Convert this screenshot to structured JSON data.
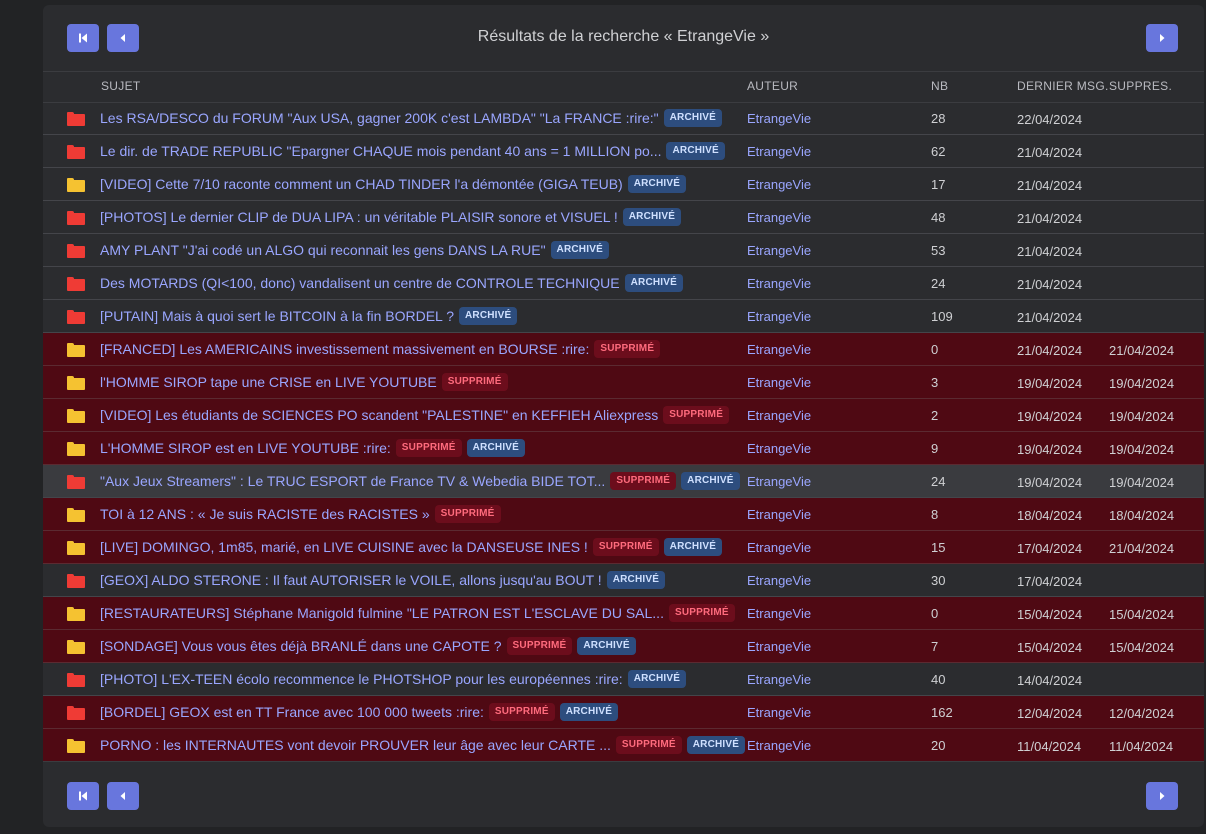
{
  "header": {
    "title": "Résultats de la recherche « EtrangeVie »",
    "first_icon": "first-page-icon",
    "prev_icon": "prev-page-icon",
    "next_icon": "next-page-icon"
  },
  "columns": {
    "subject": "SUJET",
    "author": "AUTEUR",
    "nb": "NB",
    "last_msg": "DERNIER MSG.",
    "deleted_on": "SUPPRES."
  },
  "badges": {
    "archived": "ARCHIVÉ",
    "deleted": "SUPPRIMÉ"
  },
  "colors": {
    "accent": "#6876dd",
    "link": "#9aa6ff",
    "deleted_row": "#4f0913",
    "folder_red": "#ef3b35",
    "folder_yellow": "#f5c231"
  },
  "rows": [
    {
      "folder": "red",
      "subject": "Les RSA/DESCO du FORUM \"Aux USA, gagner 200K c'est LAMBDA\" \"La FRANCE :rire:\"",
      "deleted": false,
      "archived": true,
      "author": "EtrangeVie",
      "nb": "28",
      "last": "22/04/2024",
      "supp": ""
    },
    {
      "folder": "red",
      "subject": "Le dir. de TRADE REPUBLIC \"Epargner CHAQUE mois pendant 40 ans = 1 MILLION po...",
      "deleted": false,
      "archived": true,
      "author": "EtrangeVie",
      "nb": "62",
      "last": "21/04/2024",
      "supp": ""
    },
    {
      "folder": "yellow",
      "subject": "[VIDEO] Cette 7/10 raconte comment un CHAD TINDER l'a démontée (GIGA TEUB)",
      "deleted": false,
      "archived": true,
      "author": "EtrangeVie",
      "nb": "17",
      "last": "21/04/2024",
      "supp": ""
    },
    {
      "folder": "red",
      "subject": "[PHOTOS] Le dernier CLIP de DUA LIPA : un véritable PLAISIR sonore et VISUEL !",
      "deleted": false,
      "archived": true,
      "author": "EtrangeVie",
      "nb": "48",
      "last": "21/04/2024",
      "supp": ""
    },
    {
      "folder": "red",
      "subject": "AMY PLANT \"J'ai codé un ALGO qui reconnait les gens DANS LA RUE\"",
      "deleted": false,
      "archived": true,
      "author": "EtrangeVie",
      "nb": "53",
      "last": "21/04/2024",
      "supp": ""
    },
    {
      "folder": "red",
      "subject": "Des MOTARDS (QI<100, donc) vandalisent un centre de CONTROLE TECHNIQUE",
      "deleted": false,
      "archived": true,
      "author": "EtrangeVie",
      "nb": "24",
      "last": "21/04/2024",
      "supp": ""
    },
    {
      "folder": "red",
      "subject": "[PUTAIN] Mais à quoi sert le BITCOIN à la fin BORDEL ?",
      "deleted": false,
      "archived": true,
      "author": "EtrangeVie",
      "nb": "109",
      "last": "21/04/2024",
      "supp": ""
    },
    {
      "folder": "yellow",
      "subject": "[FRANCED] Les AMERICAINS investissement massivement en BOURSE :rire:",
      "deleted": true,
      "archived": false,
      "author": "EtrangeVie",
      "nb": "0",
      "last": "21/04/2024",
      "supp": "21/04/2024"
    },
    {
      "folder": "yellow",
      "subject": "l'HOMME SIROP tape une CRISE en LIVE YOUTUBE",
      "deleted": true,
      "archived": false,
      "author": "EtrangeVie",
      "nb": "3",
      "last": "19/04/2024",
      "supp": "19/04/2024"
    },
    {
      "folder": "yellow",
      "subject": "[VIDEO] Les étudiants de SCIENCES PO scandent \"PALESTINE\" en KEFFIEH Aliexpress",
      "deleted": true,
      "archived": false,
      "author": "EtrangeVie",
      "nb": "2",
      "last": "19/04/2024",
      "supp": "19/04/2024"
    },
    {
      "folder": "yellow",
      "subject": "L'HOMME SIROP est en LIVE YOUTUBE :rire:",
      "deleted": true,
      "archived": true,
      "author": "EtrangeVie",
      "nb": "9",
      "last": "19/04/2024",
      "supp": "19/04/2024"
    },
    {
      "folder": "red",
      "subject": "\"Aux Jeux Streamers\" : Le TRUC ESPORT de France TV & Webedia BIDE TOT...",
      "deleted": true,
      "archived": true,
      "hover": true,
      "author": "EtrangeVie",
      "nb": "24",
      "last": "19/04/2024",
      "supp": "19/04/2024"
    },
    {
      "folder": "yellow",
      "subject": "TOI à 12 ANS : « Je suis RACISTE des RACISTES »",
      "deleted": true,
      "archived": false,
      "author": "EtrangeVie",
      "nb": "8",
      "last": "18/04/2024",
      "supp": "18/04/2024"
    },
    {
      "folder": "yellow",
      "subject": "[LIVE] DOMINGO, 1m85, marié, en LIVE CUISINE avec la DANSEUSE INES !",
      "deleted": true,
      "archived": true,
      "author": "EtrangeVie",
      "nb": "15",
      "last": "17/04/2024",
      "supp": "21/04/2024"
    },
    {
      "folder": "red",
      "subject": "[GEOX] ALDO STERONE : Il faut AUTORISER le VOILE, allons jusqu'au BOUT !",
      "deleted": false,
      "archived": true,
      "author": "EtrangeVie",
      "nb": "30",
      "last": "17/04/2024",
      "supp": ""
    },
    {
      "folder": "yellow",
      "subject": "[RESTAURATEURS] Stéphane Manigold fulmine \"LE PATRON EST L'ESCLAVE DU SAL...",
      "deleted": true,
      "archived": false,
      "author": "EtrangeVie",
      "nb": "0",
      "last": "15/04/2024",
      "supp": "15/04/2024"
    },
    {
      "folder": "yellow",
      "subject": "[SONDAGE] Vous vous êtes déjà BRANLÉ dans une CAPOTE ?",
      "deleted": true,
      "archived": true,
      "author": "EtrangeVie",
      "nb": "7",
      "last": "15/04/2024",
      "supp": "15/04/2024"
    },
    {
      "folder": "red",
      "subject": "[PHOTO] L'EX-TEEN écolo recommence le PHOTSHOP pour les européennes :rire:",
      "deleted": false,
      "archived": true,
      "author": "EtrangeVie",
      "nb": "40",
      "last": "14/04/2024",
      "supp": ""
    },
    {
      "folder": "red",
      "subject": "[BORDEL] GEOX est en TT France avec 100 000 tweets :rire:",
      "deleted": true,
      "archived": true,
      "author": "EtrangeVie",
      "nb": "162",
      "last": "12/04/2024",
      "supp": "12/04/2024"
    },
    {
      "folder": "yellow",
      "subject": "PORNO : les INTERNAUTES vont devoir PROUVER leur âge avec leur CARTE ...",
      "deleted": true,
      "archived": true,
      "author": "EtrangeVie",
      "nb": "20",
      "last": "11/04/2024",
      "supp": "11/04/2024"
    }
  ]
}
